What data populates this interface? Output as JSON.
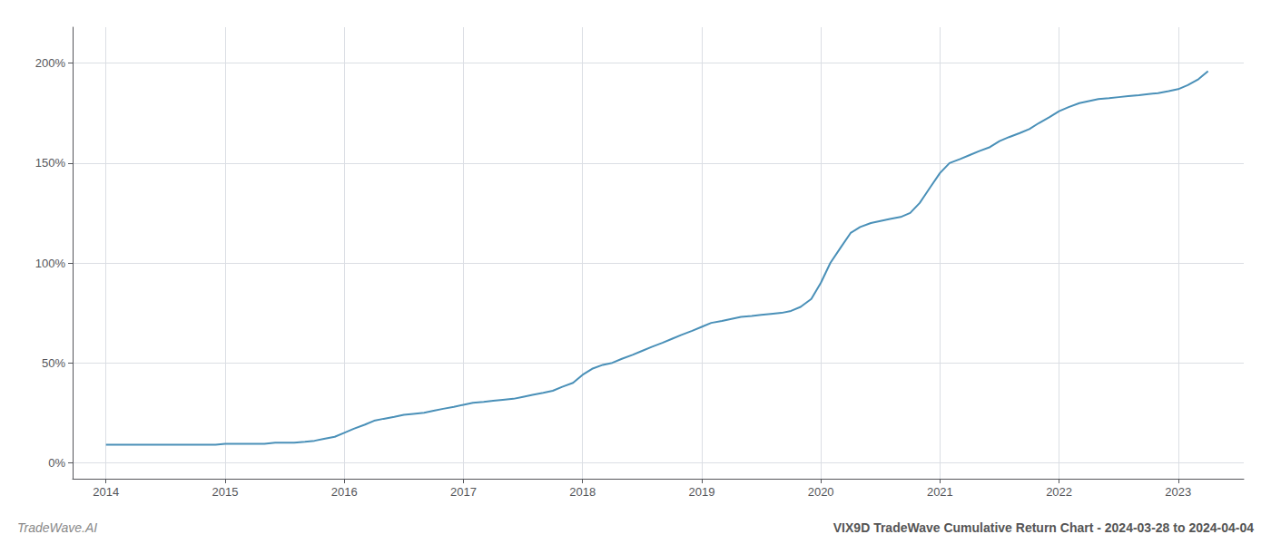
{
  "chart_data": {
    "type": "line",
    "title": "VIX9D TradeWave Cumulative Return Chart - 2024-03-28 to 2024-04-04",
    "annotations": [
      "TradeWave.AI"
    ],
    "color": "#4a90b8",
    "x": [
      2014.0,
      2014.08,
      2014.17,
      2014.25,
      2014.33,
      2014.42,
      2014.5,
      2014.58,
      2014.67,
      2014.75,
      2014.83,
      2014.92,
      2015.0,
      2015.08,
      2015.17,
      2015.25,
      2015.33,
      2015.42,
      2015.5,
      2015.58,
      2015.67,
      2015.75,
      2015.83,
      2015.92,
      2016.0,
      2016.08,
      2016.17,
      2016.25,
      2016.33,
      2016.42,
      2016.5,
      2016.58,
      2016.67,
      2016.75,
      2016.83,
      2016.92,
      2017.0,
      2017.08,
      2017.17,
      2017.25,
      2017.33,
      2017.42,
      2017.5,
      2017.58,
      2017.67,
      2017.75,
      2017.83,
      2017.92,
      2018.0,
      2018.08,
      2018.17,
      2018.25,
      2018.33,
      2018.42,
      2018.5,
      2018.58,
      2018.67,
      2018.75,
      2018.83,
      2018.92,
      2019.0,
      2019.08,
      2019.17,
      2019.25,
      2019.33,
      2019.42,
      2019.5,
      2019.58,
      2019.67,
      2019.75,
      2019.83,
      2019.92,
      2020.0,
      2020.08,
      2020.17,
      2020.25,
      2020.33,
      2020.42,
      2020.5,
      2020.58,
      2020.67,
      2020.75,
      2020.83,
      2020.92,
      2021.0,
      2021.08,
      2021.17,
      2021.25,
      2021.33,
      2021.42,
      2021.5,
      2021.58,
      2021.67,
      2021.75,
      2021.83,
      2021.92,
      2022.0,
      2022.08,
      2022.17,
      2022.25,
      2022.33,
      2022.42,
      2022.5,
      2022.58,
      2022.67,
      2022.75,
      2022.83,
      2022.92,
      2023.0,
      2023.08,
      2023.17,
      2023.25
    ],
    "values": [
      9,
      9,
      9,
      9,
      9,
      9,
      9,
      9,
      9,
      9,
      9,
      9,
      9.5,
      9.5,
      9.5,
      9.5,
      9.5,
      10,
      10,
      10,
      10.5,
      11,
      12,
      13,
      15,
      17,
      19,
      21,
      22,
      23,
      24,
      24.5,
      25,
      26,
      27,
      28,
      29,
      30,
      30.5,
      31,
      31.5,
      32,
      33,
      34,
      35,
      36,
      38,
      40,
      44,
      47,
      49,
      50,
      52,
      54,
      56,
      58,
      60,
      62,
      64,
      66,
      68,
      70,
      71,
      72,
      73,
      73.5,
      74,
      74.5,
      75,
      76,
      78,
      82,
      90,
      100,
      108,
      115,
      118,
      120,
      121,
      122,
      123,
      125,
      130,
      138,
      145,
      150,
      152,
      154,
      156,
      158,
      161,
      163,
      165,
      167,
      170,
      173,
      176,
      178,
      180,
      181,
      182,
      182.5,
      183,
      183.5,
      184,
      184.5,
      185,
      186,
      187,
      189,
      192,
      196
    ],
    "xlim": [
      2013.72,
      2023.55
    ],
    "xticks": [
      2014,
      2015,
      2016,
      2017,
      2018,
      2019,
      2020,
      2021,
      2022,
      2023
    ],
    "ylim": [
      -8,
      218
    ],
    "yticks": [
      {
        "value": 0,
        "label": "0%"
      },
      {
        "value": 50,
        "label": "50%"
      },
      {
        "value": 100,
        "label": "100%"
      },
      {
        "value": 150,
        "label": "150%"
      },
      {
        "value": 200,
        "label": "200%"
      }
    ],
    "grid": true
  }
}
